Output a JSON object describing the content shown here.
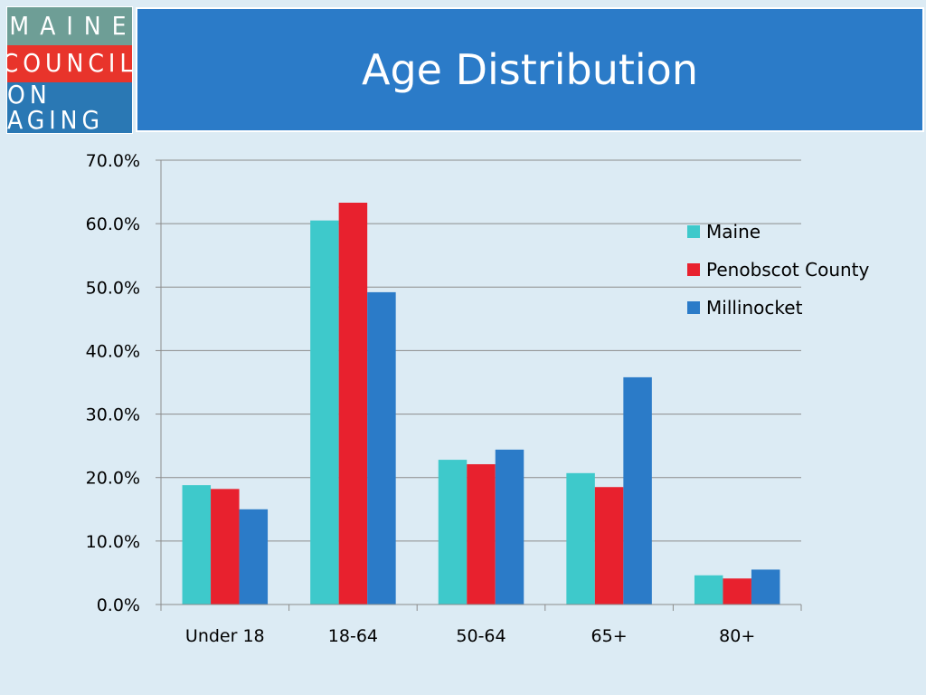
{
  "logo": {
    "line1": "MAINE",
    "line2": "COUNCIL",
    "line3": "ON AGING",
    "colors": {
      "line1_bg": "#6e9e96",
      "line2_bg": "#e8342b",
      "line3_bg": "#2a78b4"
    }
  },
  "header": {
    "title": "Age Distribution",
    "background": "#2b7bc8"
  },
  "chart_data": {
    "type": "bar",
    "title": "Age Distribution",
    "xlabel": "",
    "ylabel": "",
    "categories": [
      "Under 18",
      "18-64",
      "50-64",
      "65+",
      "80+"
    ],
    "series": [
      {
        "name": "Maine",
        "color": "#3ec9cb",
        "values": [
          18.8,
          60.5,
          22.8,
          20.7,
          4.6
        ]
      },
      {
        "name": "Penobscot County",
        "color": "#e8212e",
        "values": [
          18.2,
          63.3,
          22.1,
          18.5,
          4.1
        ]
      },
      {
        "name": "Millinocket",
        "color": "#2b7bc8",
        "values": [
          15.0,
          49.2,
          24.4,
          35.8,
          5.5
        ]
      }
    ],
    "ylim": [
      0,
      70
    ],
    "yticks": [
      "0.0%",
      "10.0%",
      "20.0%",
      "30.0%",
      "40.0%",
      "50.0%",
      "60.0%",
      "70.0%"
    ],
    "grid": true,
    "legend_position": "right"
  }
}
